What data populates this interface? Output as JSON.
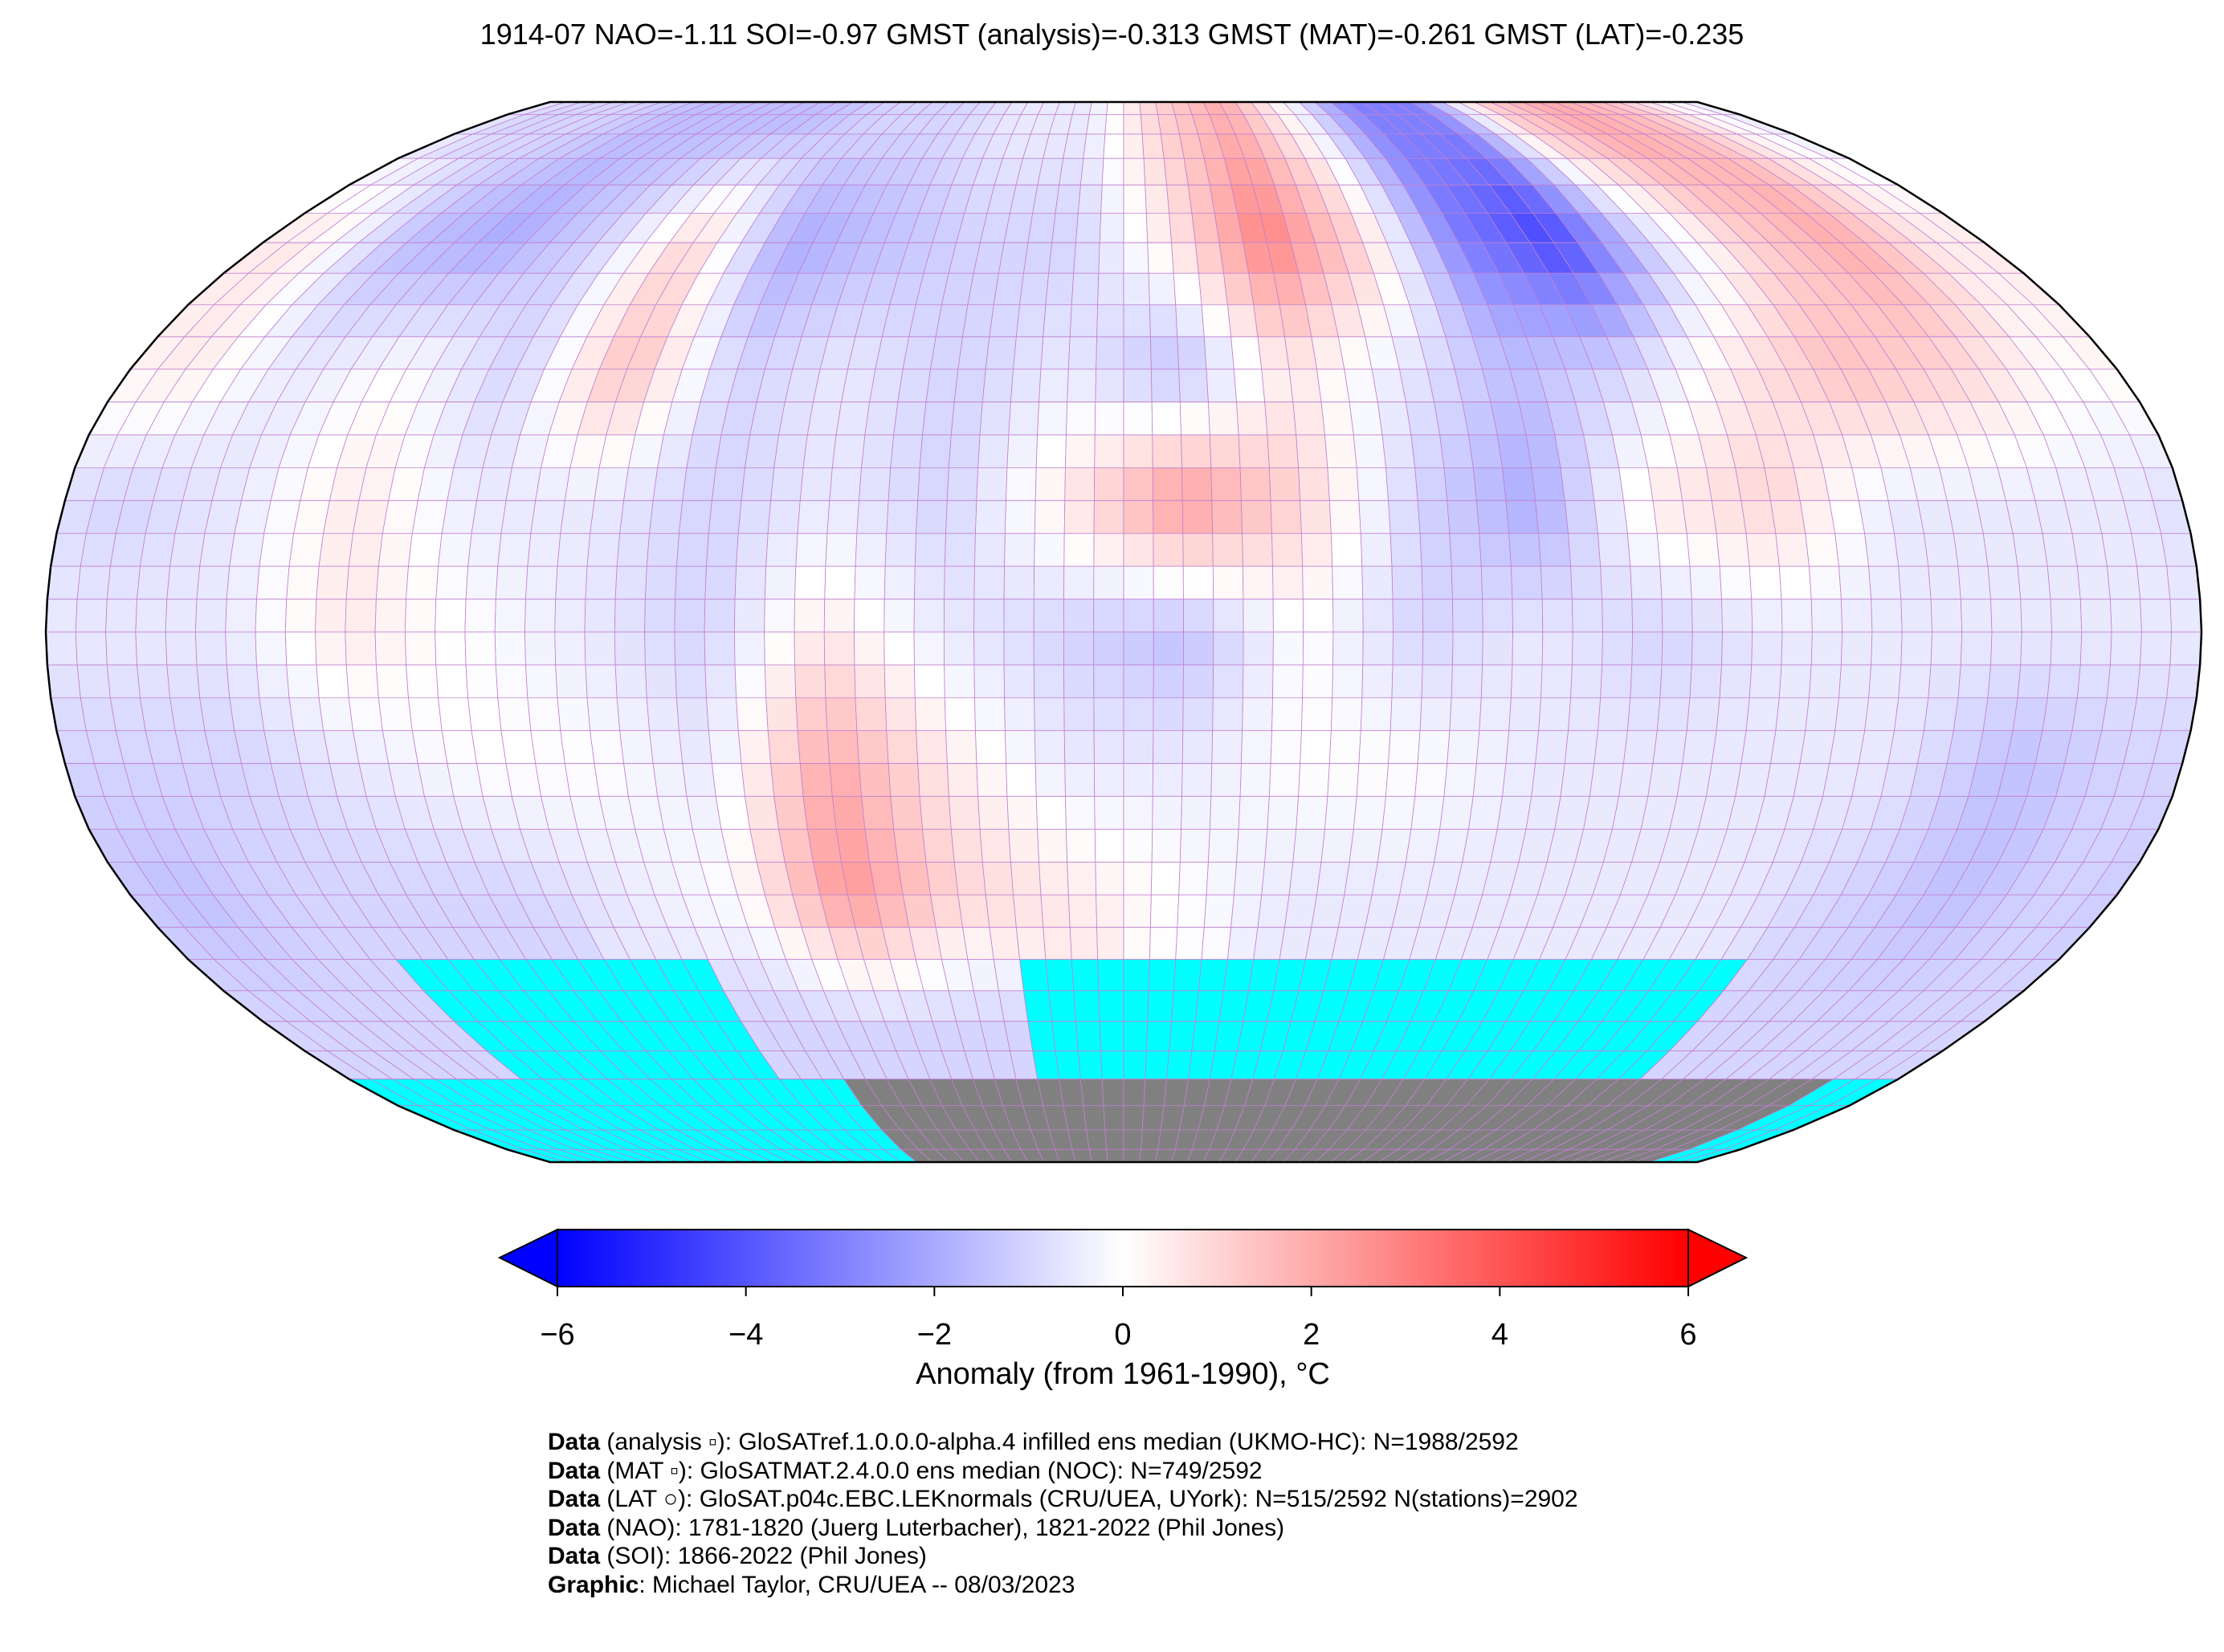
{
  "chart_data": {
    "type": "heatmap",
    "title": "1914-07 NAO=-1.11 SOI=-0.97 GMST (analysis)=-0.313 GMST (MAT)=-0.261 GMST (LAT)=-0.235",
    "projection": "Robinson",
    "grid_resolution_deg": 20,
    "lat_bands": [
      "90N-70N",
      "70N-50N",
      "50N-30N",
      "30N-10N",
      "10N-10S",
      "10S-30S",
      "30S-50S",
      "50S-70S",
      "70S-90S"
    ],
    "lon_starts": [
      -180,
      -160,
      -140,
      -120,
      -100,
      -80,
      -60,
      -40,
      -20,
      0,
      20,
      40,
      60,
      80,
      100,
      120,
      140,
      160
    ],
    "anomaly_grid": [
      [
        -1,
        -1,
        -1.5,
        -1.5,
        -1.5,
        -1,
        -1,
        -0.5,
        -0.5,
        1,
        2,
        0,
        -3,
        -3,
        1,
        2,
        1.5,
        0
      ],
      [
        0.5,
        -1.5,
        -2,
        -1,
        1,
        -2,
        -1.5,
        -1,
        -1,
        0.5,
        3,
        1,
        -3,
        -4.5,
        -1,
        1,
        2,
        0.5
      ],
      [
        0.5,
        -0.5,
        0,
        -1,
        1.5,
        -1,
        -0.5,
        -1,
        -0.5,
        -1.5,
        0.5,
        -0.5,
        -1.5,
        -1,
        0.5,
        1.5,
        1,
        0
      ],
      [
        -1,
        -0.5,
        0.5,
        -0.5,
        -0.5,
        -1,
        -0.5,
        -1,
        0.5,
        2.5,
        1,
        -1,
        -2,
        0.5,
        1,
        -0.5,
        -0.5,
        -0.5
      ],
      [
        -0.5,
        -0.5,
        0.5,
        0,
        -0.5,
        -1,
        0.5,
        -0.5,
        -1,
        -1.5,
        0,
        -1,
        -0.5,
        -1,
        -0.5,
        -0.5,
        -0.5,
        -0.5
      ],
      [
        -1,
        -1,
        -0.5,
        0,
        0,
        -0.5,
        2,
        0.5,
        -0.5,
        -0.5,
        0,
        0,
        -0.5,
        -0.5,
        -0.5,
        -0.5,
        -1.5,
        -1
      ],
      [
        -1.5,
        -1,
        -1,
        -1,
        -0.5,
        0,
        2.5,
        1,
        0.5,
        0,
        -0.5,
        -0.5,
        -0.5,
        -0.5,
        -0.5,
        -1,
        -1.5,
        -1
      ],
      [
        -1,
        -1,
        null,
        null,
        null,
        -1,
        -1,
        -1,
        null,
        null,
        null,
        null,
        null,
        null,
        null,
        -1,
        -1,
        -1
      ],
      [
        null,
        null,
        null,
        null,
        null,
        null,
        null,
        null,
        null,
        null,
        null,
        null,
        null,
        null,
        null,
        null,
        null,
        null
      ]
    ],
    "missing_color": "#00ffff",
    "land_ice_color": "#808080",
    "colormap": "bwr",
    "colorbar": {
      "label": "Anomaly (from 1961-1990), °C",
      "vmin": -6,
      "vmax": 6,
      "extend": "both",
      "ticks": [
        "−6",
        "−4",
        "−2",
        "0",
        "2",
        "4",
        "6"
      ],
      "tick_values": [
        -6,
        -4,
        -2,
        0,
        2,
        4,
        6
      ]
    }
  },
  "credits": [
    {
      "bold": "Data",
      "text": " (analysis ▫): GloSATref.1.0.0.0-alpha.4 infilled ens median (UKMO-HC): N=1988/2592"
    },
    {
      "bold": "Data",
      "text": " (MAT ▫): GloSATMAT.2.4.0.0 ens median (NOC): N=749/2592"
    },
    {
      "bold": "Data",
      "text": " (LAT ○): GloSAT.p04c.EBC.LEKnormals (CRU/UEA, UYork): N=515/2592 N(stations)=2902"
    },
    {
      "bold": "Data",
      "text": " (NAO): 1781-1820 (Juerg Luterbacher), 1821-2022 (Phil Jones)"
    },
    {
      "bold": "Data",
      "text": " (SOI): 1866-2022 (Phil Jones)"
    },
    {
      "bold": "Graphic",
      "text": ": Michael Taylor, CRU/UEA -- 08/03/2023"
    }
  ]
}
